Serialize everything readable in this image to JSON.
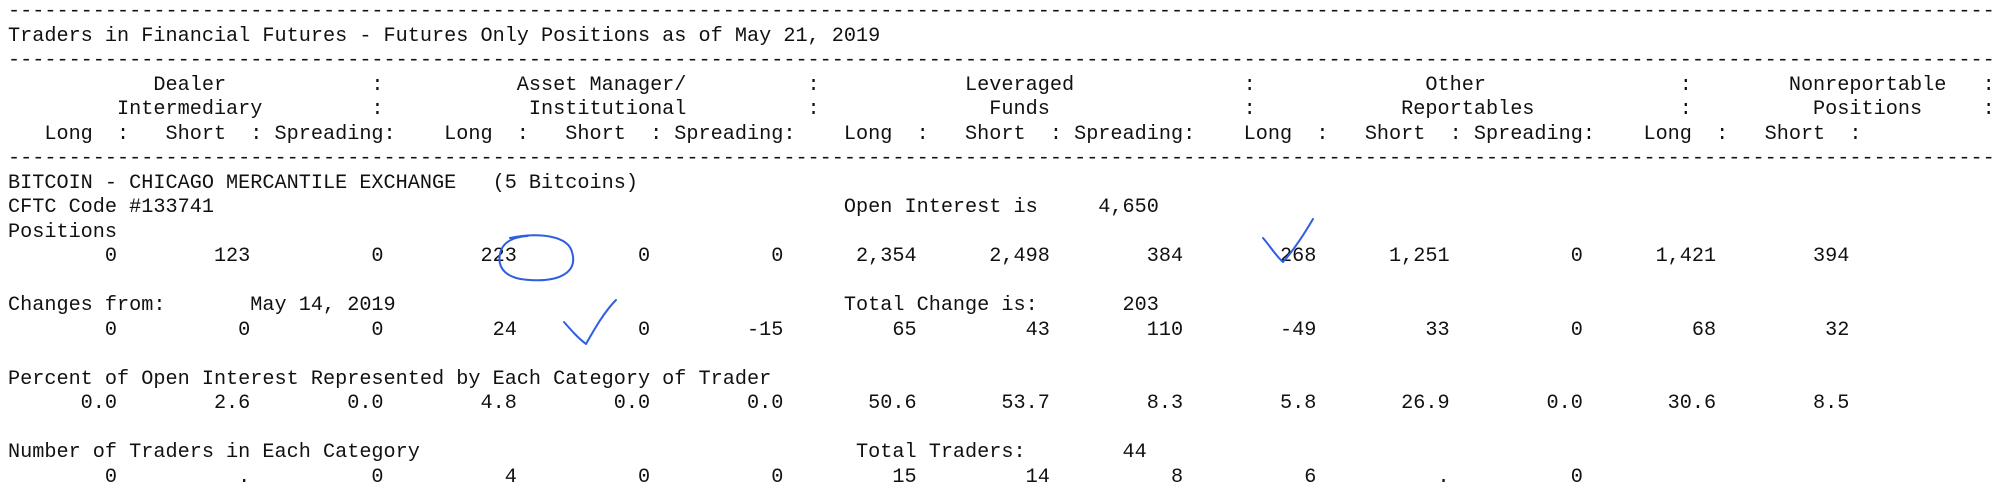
{
  "header": {
    "title_line": "Traders in Financial Futures - Futures Only Positions as of May 21, 2019",
    "col_header_1": "            Dealer            :           Asset Manager/          :            Leveraged              :              Other                :        Nonreportable   :",
    "col_header_2": "         Intermediary         :            Institutional          :              Funds                :            Reportables            :          Positions     :",
    "col_header_3": "   Long  :   Short  : Spreading:    Long  :   Short  : Spreading:    Long  :   Short  : Spreading:    Long  :   Short  : Spreading:    Long  :   Short  :"
  },
  "market": {
    "name_line": "BITCOIN - CHICAGO MERCANTILE EXCHANGE   (5 Bitcoins)",
    "code_line": "CFTC Code #133741                                                    Open Interest is     4,650",
    "positions_label": "Positions",
    "positions_values": "        0        123          0        223          0          0      2,354      2,498        384        268      1,251          0      1,421        394",
    "changes_line": "Changes from:       May 14, 2019                                     Total Change is:       203",
    "changes_values": "        0          0          0         24          0        -15         65         43        110        -49         33          0         68         32",
    "percent_line": "Percent of Open Interest Represented by Each Category of Trader",
    "percent_values": "      0.0        2.6        0.0        4.8        0.0        0.0       50.6       53.7        8.3        5.8       26.9        0.0       30.6        8.5",
    "traders_line": "Number of Traders in Each Category                                    Total Traders:        44",
    "traders_values": "        0          .          0          4          0          0         15         14          8          6          .          0"
  },
  "annotation_color": "#2f5ee0"
}
